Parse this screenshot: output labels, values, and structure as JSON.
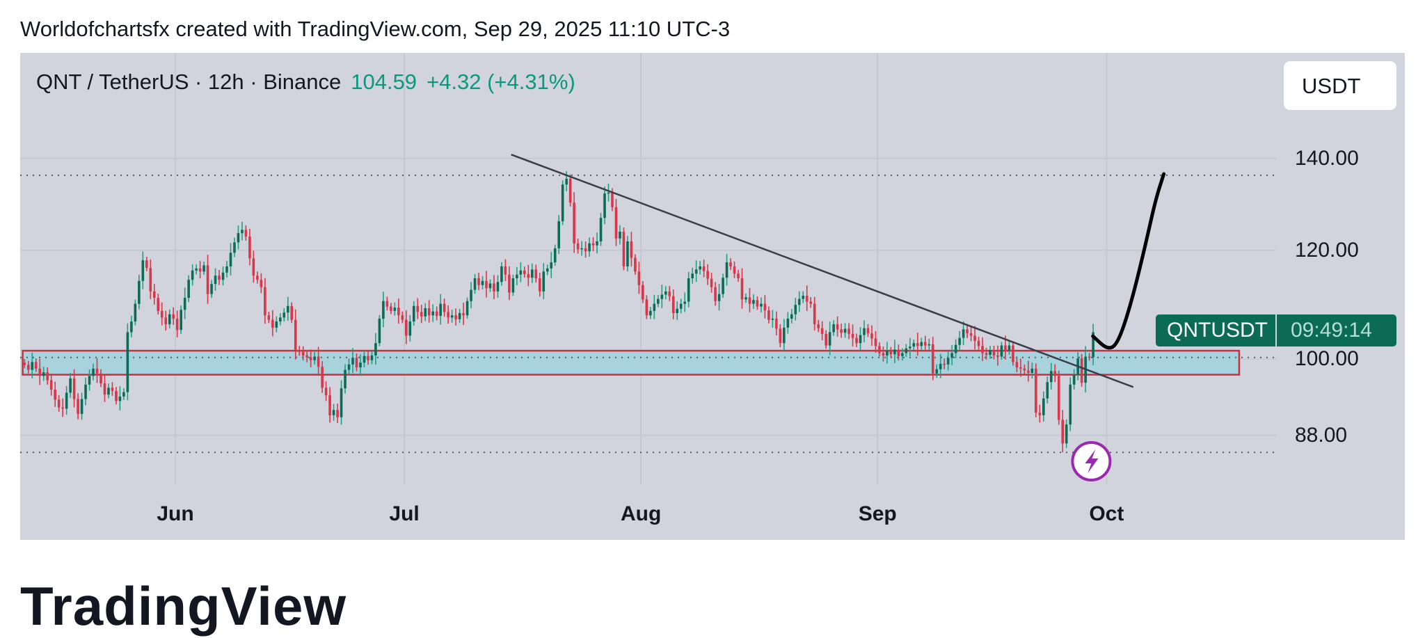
{
  "header": {
    "text": "Worldofchartsfx created with TradingView.com, Sep 29, 2025 11:10 UTC-3"
  },
  "title": {
    "symbol": "QNT / TetherUS · 12h · Binance",
    "last": "104.59",
    "change": "+4.32 (+4.31%)"
  },
  "currency_button": "USDT",
  "price_badge": {
    "symbol": "QNTUSDT",
    "countdown": "09:49:14",
    "color": "#0b6b57"
  },
  "logo_text": "TradingView",
  "colors": {
    "background": "#d1d4dc",
    "up": "#0b6b57",
    "up_wick": "#1f9e86",
    "down": "#d9364a",
    "zone_fill": "#a8d3dc",
    "zone_border": "#c8303f",
    "event_icon": "#9c27b0"
  },
  "chart_data": {
    "type": "candlestick",
    "interval": "12h",
    "y_scale": "log",
    "ylim": [
      80,
      150
    ],
    "grid": true,
    "y_ticks": [
      "140.00",
      "120.00",
      "100.00",
      "88.00"
    ],
    "x_ticks": [
      {
        "label": "Jun",
        "date": "2025-06-01"
      },
      {
        "label": "Jul",
        "date": "2025-07-01"
      },
      {
        "label": "Aug",
        "date": "2025-08-01"
      },
      {
        "label": "Sep",
        "date": "2025-09-01"
      },
      {
        "label": "Oct",
        "date": "2025-10-01"
      }
    ],
    "first_candle": "2025-05-12T00:00",
    "close": [
      99,
      98.2,
      99.5,
      98.4,
      97.2,
      97.8,
      96.5,
      95,
      93.4,
      92.2,
      92,
      94.5,
      96.8,
      93.5,
      91.2,
      93.5,
      95.8,
      97.2,
      98.4,
      97.6,
      96,
      94.2,
      95.3,
      94.8,
      93.2,
      93.9,
      94.6,
      104.6,
      106.5,
      109.7,
      114,
      118,
      116.5,
      112,
      110.8,
      108.4,
      107.2,
      106,
      107.8,
      107,
      105,
      108.6,
      110.8,
      114.2,
      116,
      116.4,
      115.8,
      117,
      111.5,
      113.4,
      115,
      114.2,
      115.6,
      116.8,
      119.5,
      121.6,
      123.5,
      124.2,
      122.8,
      118.4,
      115,
      114.2,
      112.8,
      107.6,
      106.8,
      105.4,
      106.5,
      107.2,
      108.1,
      109.3,
      106.8,
      101.5,
      101.2,
      100.6,
      100.3,
      99.8,
      100.4,
      98.7,
      95.3,
      94.1,
      91,
      91.8,
      90.7,
      95.2,
      98.2,
      99.1,
      100.2,
      98.6,
      99.4,
      100.5,
      99.8,
      100.6,
      102.7,
      107,
      110.2,
      109.2,
      108.4,
      109,
      107.6,
      106.8,
      104,
      106.5,
      109.3,
      108.2,
      107.4,
      108.9,
      107.6,
      108.3,
      107.5,
      109.7,
      108.2,
      107.2,
      107.6,
      106.9,
      108,
      107.6,
      110.2,
      112.3,
      114.5,
      113.2,
      114,
      112.6,
      113.5,
      112,
      113.8,
      116.8,
      115.2,
      111.8,
      114.5,
      115.2,
      116,
      115.3,
      114.6,
      116.2,
      114.5,
      112,
      115.8,
      116.4,
      117.6,
      120.4,
      126,
      134,
      135.3,
      130,
      121.4,
      120.2,
      120.4,
      119.8,
      121.4,
      121,
      121.8,
      126.7,
      132,
      132.2,
      129,
      122.4,
      123.8,
      116.8,
      121.8,
      118.5,
      115.8,
      113.2,
      110.5,
      107.6,
      108.4,
      109.7,
      110.6,
      111.4,
      112,
      111.1,
      108,
      108.8,
      109.7,
      110.1,
      114.5,
      115.4,
      116.2,
      116.8,
      115.9,
      114.4,
      112.8,
      110.2,
      111.5,
      114.6,
      117.6,
      116.8,
      115.4,
      114.5,
      110.5,
      110.9,
      109.7,
      110.4,
      109.2,
      109.7,
      108.5,
      106.8,
      107,
      105.2,
      102.7,
      105.4,
      107,
      107.8,
      109.5,
      110.6,
      111.2,
      110.1,
      109.7,
      106,
      105.3,
      104.3,
      102.3,
      104.6,
      106,
      105.1,
      104.5,
      105.2,
      104.3,
      103.6,
      102.7,
      104.1,
      105.3,
      104.4,
      103.5,
      102.2,
      101,
      100.6,
      101.4,
      100.8,
      101.6,
      100.5,
      101,
      101.8,
      102.1,
      102.7,
      102.2,
      102.9,
      102.3,
      102.5,
      97.6,
      98.3,
      99.2,
      99.1,
      100.2,
      101,
      102.4,
      103.6,
      105.1,
      104.4,
      104,
      103.1,
      102.2,
      101,
      100.7,
      101.5,
      100.6,
      100.4,
      102.3,
      101.4,
      102.3,
      99.5,
      98.6,
      98.4,
      98.1,
      97.7,
      98.4,
      91.4,
      91,
      93.6,
      96.2,
      98,
      97.2,
      90.3,
      86.8,
      89.6,
      95.8,
      97.4,
      100.1,
      96.1,
      100.4,
      100.27,
      104.59
    ],
    "horizontal_levels": [
      136.1,
      100.27,
      85.5
    ],
    "zone": {
      "from": "2025-05-12T00:00",
      "to": "2025-10-18T09:00",
      "low": 97.4,
      "high": 101.4
    },
    "trendline": [
      {
        "date": "2025-07-15T00:00",
        "price": 140.9
      },
      {
        "date": "2025-10-04T12:00",
        "price": 95.4
      }
    ],
    "projection": [
      {
        "date": "2025-09-29T05:00",
        "price": 103.9
      },
      {
        "date": "2025-10-01T05:00",
        "price": 101.5
      },
      {
        "date": "2025-10-02T12:00",
        "price": 102.7
      },
      {
        "date": "2025-10-04T05:00",
        "price": 109.7
      },
      {
        "date": "2025-10-06T02:00",
        "price": 121.0
      },
      {
        "date": "2025-10-07T10:00",
        "price": 130.6
      },
      {
        "date": "2025-10-08T12:00",
        "price": 136.4
      }
    ],
    "event_marker": {
      "date": "2025-09-29T00:00",
      "icon": "lightning-icon"
    }
  }
}
